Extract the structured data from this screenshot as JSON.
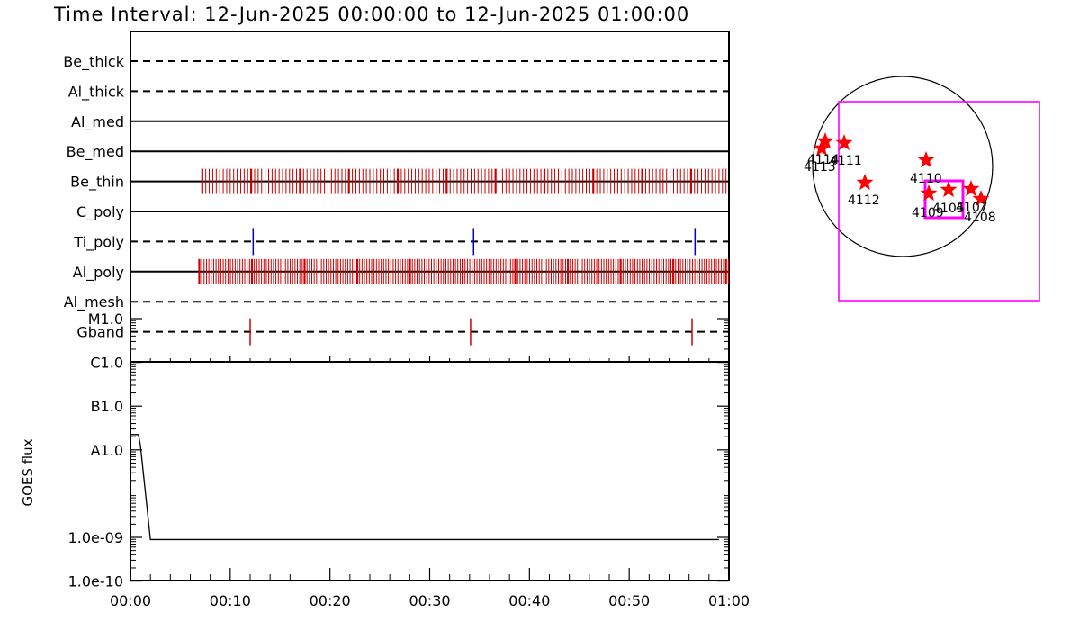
{
  "title": "Time Interval: 12-Jun-2025 00:00:00 to 12-Jun-2025 01:00:00",
  "colors": {
    "event": "#cc0000",
    "ti_event": "#0000cc",
    "star": "#ff0000",
    "fov": "#ff00ff",
    "axis": "#000000"
  },
  "chart_data": [
    {
      "type": "timeline",
      "time_range": [
        "00:00",
        "01:00"
      ],
      "tick_labels": [
        "00:00",
        "00:10",
        "00:20",
        "00:30",
        "00:40",
        "00:50",
        "01:00"
      ],
      "filters": [
        {
          "name": "Be_thick",
          "style": "dashed",
          "events_min": []
        },
        {
          "name": "Al_thick",
          "style": "dashed",
          "events_min": []
        },
        {
          "name": "Al_med",
          "style": "solid",
          "events_min": []
        },
        {
          "name": "Be_med",
          "style": "solid",
          "events_min": []
        },
        {
          "name": "Be_thin",
          "style": "solid",
          "dense": {
            "start": 7.2,
            "end": 60,
            "step": 0.35,
            "thick_every": 14
          }
        },
        {
          "name": "C_poly",
          "style": "solid",
          "events_min": []
        },
        {
          "name": "Ti_poly",
          "style": "dashed",
          "events_min": [
            12.3,
            34.4,
            56.6
          ],
          "color": "ti_event"
        },
        {
          "name": "Al_poly",
          "style": "solid",
          "dense": {
            "start": 6.9,
            "end": 60,
            "step": 0.24,
            "thick_every": 22
          }
        },
        {
          "name": "Al_mesh",
          "style": "dashed",
          "events_min": []
        },
        {
          "name": "Gband",
          "style": "dashed",
          "events_min": [
            12.0,
            34.1,
            56.3
          ]
        }
      ]
    },
    {
      "type": "line",
      "ylabel": "GOES flux",
      "y_ticks": [
        "M1.0",
        "C1.0",
        "B1.0",
        "A1.0",
        "1.0e-09",
        "1.0e-10"
      ],
      "x_ticks": [
        "00:00",
        "00:10",
        "00:20",
        "00:30",
        "00:40",
        "00:50",
        "01:00"
      ],
      "series": [
        {
          "points": [
            [
              0.0,
              2.35
            ],
            [
              0.8,
              2.35
            ],
            [
              1.0,
              2.1
            ],
            [
              2.0,
              -0.05
            ],
            [
              59.0,
              -0.05
            ]
          ]
        }
      ]
    },
    {
      "type": "scatter",
      "x": [
        4111,
        4112,
        4113,
        4114,
        4110,
        4109,
        4105,
        4107,
        4108
      ],
      "labels": [
        "4111",
        "4112",
        "4113",
        "4114",
        "4110",
        "4109",
        "4105",
        "4107",
        "4108"
      ]
    }
  ]
}
